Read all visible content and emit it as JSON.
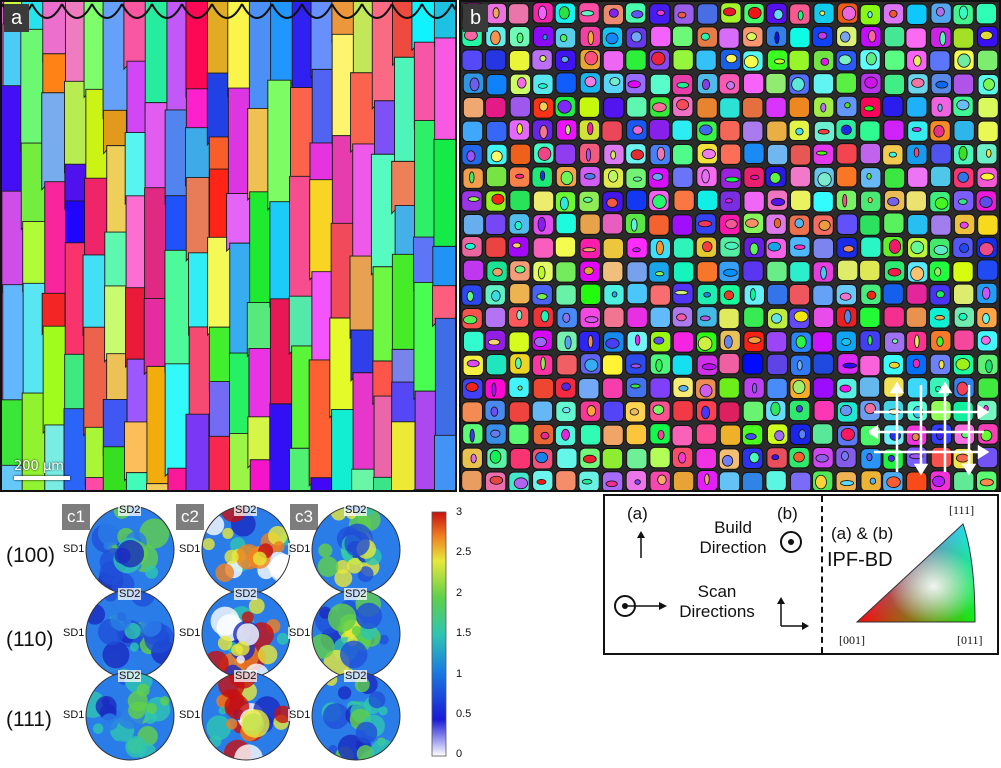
{
  "panel_a": {
    "label": "a",
    "scale_bar": "200 μm"
  },
  "panel_b": {
    "label": "b"
  },
  "legend": {
    "label_a": "(a)",
    "label_b": "(b)",
    "build_direction": [
      "Build",
      "Direction"
    ],
    "scan_directions": [
      "Scan",
      "Directions"
    ],
    "ipf_title": "(a) & (b)",
    "ipf_label": "IPF-BD",
    "corner_111": "[111]",
    "corner_001": "[001]",
    "corner_011": "[011]"
  },
  "pole_figures": {
    "columns": [
      "c1",
      "c2",
      "c3"
    ],
    "rows": [
      "(100)",
      "(110)",
      "(111)"
    ],
    "axis_top": "SD2",
    "axis_left": "SD1",
    "colorbar_ticks": [
      "3",
      "2.5",
      "2",
      "1.5",
      "1",
      "0.5",
      "0"
    ],
    "colors": {
      "low": "#ffffff",
      "mid1": "#1a3fd0",
      "mid2": "#36c7a8",
      "mid3": "#e8e83a",
      "high": "#d01010"
    }
  }
}
